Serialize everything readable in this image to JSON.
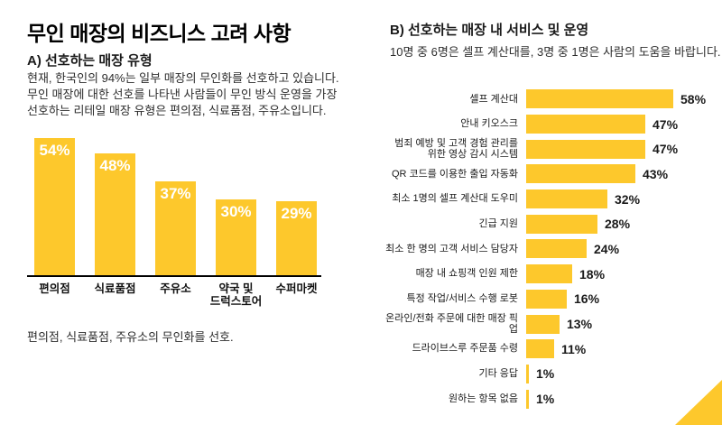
{
  "page": {
    "title": "무인 매장의 비즈니스 고려 사항",
    "section_a": {
      "heading": "A) 선호하는 매장 유형",
      "body": "현재, 한국인의 94%는 일부 매장의 무인화를 선호하고 있습니다.\n무인 매장에 대한 선호를 나타낸 사람들이 무인 방식 운영을 가장\n선호하는 리테일 매장 유형은 편의점, 식료품점, 주유소입니다.",
      "caption": "편의점, 식료품점, 주유소의 무인화를 선호."
    },
    "section_b": {
      "heading": "B) 선호하는 매장 내 서비스 및 운영",
      "subtitle": "10명 중 6명은 셀프 계산대를, 3명 중 1명은 사람의 도움을 바랍니다."
    }
  },
  "colors": {
    "bar_yellow": "#FDC82C",
    "value_label_white": "#FFFFFF",
    "text_black": "#1A1A1A"
  },
  "chart_data": [
    {
      "id": "preferred-store-types",
      "type": "bar",
      "orientation": "vertical",
      "title": "A) 선호하는 매장 유형",
      "categories": [
        "편의점",
        "식료품점",
        "주유소",
        "약국 및\n드럭스토어",
        "수퍼마켓"
      ],
      "values": [
        54,
        48,
        37,
        30,
        29
      ],
      "value_suffix": "%",
      "ylim": [
        0,
        54
      ],
      "grid": false,
      "legend": "none",
      "value_labels": "inside-top-white"
    },
    {
      "id": "preferred-in-store-services",
      "type": "bar",
      "orientation": "horizontal",
      "title": "B) 선호하는 매장 내 서비스 및 운영",
      "categories": [
        "셀프 계산대",
        "안내 키오스크",
        "범죄 예방 및 고객 경험 관리를\n위한 영상 감시 시스템",
        "QR 코드를 이용한 출입 자동화",
        "최소 1명의 셀프 계산대 도우미",
        "긴급 지원",
        "최소 한 명의 고객 서비스 담당자",
        "매장 내 쇼핑객 인원 제한",
        "특정 작업/서비스 수행 로봇",
        "온라인/전화 주문에 대한 매장 픽업",
        "드라이브스루 주문품 수령",
        "기타 응답",
        "원하는 항목 없음"
      ],
      "values": [
        58,
        47,
        47,
        43,
        32,
        28,
        24,
        18,
        16,
        13,
        11,
        1,
        1
      ],
      "value_suffix": "%",
      "xlim": [
        0,
        60
      ],
      "grid": false,
      "legend": "none",
      "value_labels": "outside-end-black"
    }
  ]
}
